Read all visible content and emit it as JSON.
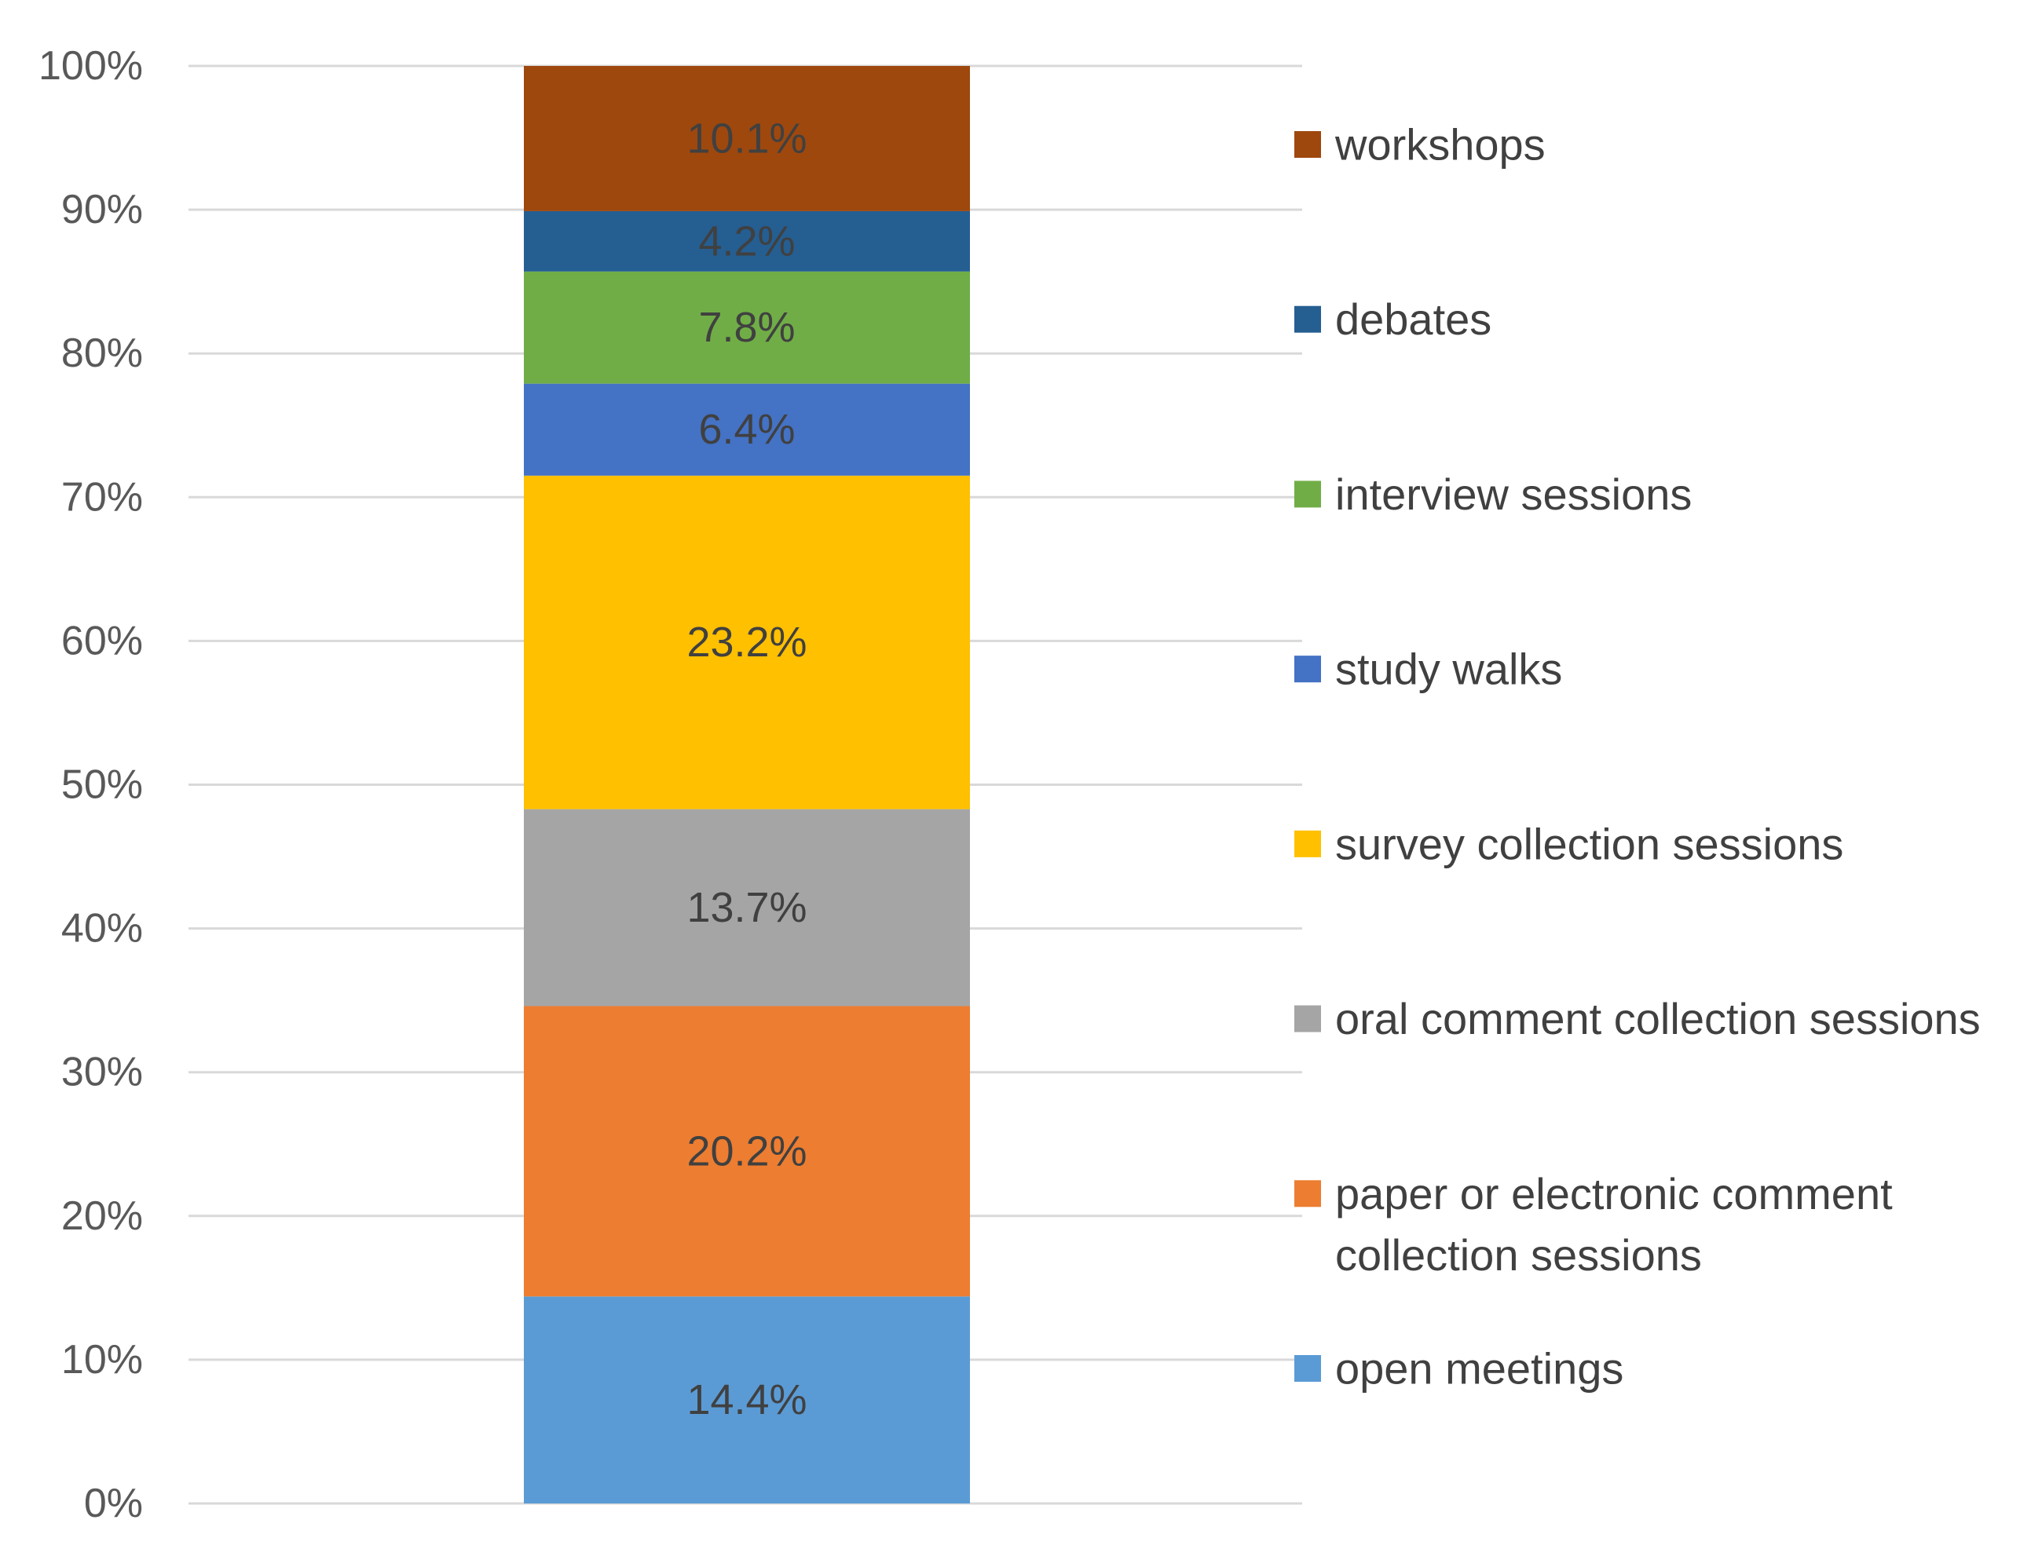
{
  "chart_data": {
    "type": "bar",
    "stacked": true,
    "percent": true,
    "title": "",
    "xlabel": "",
    "ylabel": "",
    "ylim": [
      0,
      100
    ],
    "yticks": [
      0,
      10,
      20,
      30,
      40,
      50,
      60,
      70,
      80,
      90,
      100
    ],
    "ytick_labels": [
      "0%",
      "10%",
      "20%",
      "30%",
      "40%",
      "50%",
      "60%",
      "70%",
      "80%",
      "90%",
      "100%"
    ],
    "grid": true,
    "legend_position": "right",
    "series": [
      {
        "name": "open meetings",
        "value": 14.4,
        "label": "14.4%",
        "color": "#5b9bd5"
      },
      {
        "name": "paper or electronic comment collection sessions",
        "lines": [
          "paper or electronic comment",
          "collection sessions"
        ],
        "value": 20.2,
        "label": "20.2%",
        "color": "#ed7d31"
      },
      {
        "name": "oral comment collection sessions",
        "value": 13.7,
        "label": "13.7%",
        "color": "#a5a5a5"
      },
      {
        "name": "survey collection sessions",
        "value": 23.2,
        "label": "23.2%",
        "color": "#ffc000"
      },
      {
        "name": "study walks",
        "value": 6.4,
        "label": "6.4%",
        "color": "#4472c4"
      },
      {
        "name": "interview sessions",
        "value": 7.8,
        "label": "7.8%",
        "color": "#70ad47"
      },
      {
        "name": "debates",
        "value": 4.2,
        "label": "4.2%",
        "color": "#255e91"
      },
      {
        "name": "workshops",
        "value": 10.1,
        "label": "10.1%",
        "color": "#9e480e"
      }
    ]
  }
}
